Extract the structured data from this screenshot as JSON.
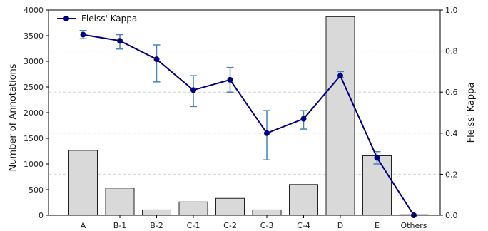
{
  "chart_data": {
    "type": "bar+line",
    "categories": [
      "A",
      "B-1",
      "B-2",
      "C-1",
      "C-2",
      "C-3",
      "C-4",
      "D",
      "E",
      "Others"
    ],
    "bars": {
      "name": "Number of Annotations",
      "values": [
        1265,
        530,
        105,
        260,
        330,
        105,
        600,
        3870,
        1160,
        10
      ],
      "color": "#d9d9d9"
    },
    "line": {
      "name": "Fleiss' Kappa",
      "values": [
        0.88,
        0.85,
        0.76,
        0.61,
        0.66,
        0.4,
        0.47,
        0.68,
        0.28,
        0.0
      ],
      "error": [
        [
          0.86,
          0.9
        ],
        [
          0.81,
          0.88
        ],
        [
          0.65,
          0.83
        ],
        [
          0.53,
          0.68
        ],
        [
          0.6,
          0.72
        ],
        [
          0.27,
          0.51
        ],
        [
          0.42,
          0.51
        ],
        [
          0.67,
          0.7
        ],
        [
          0.25,
          0.31
        ],
        null
      ],
      "color": "#000080",
      "error_color": "#4682b4"
    },
    "ylabel_left": "Number of Annotations",
    "ylabel_right": "Fleiss' Kappa",
    "ylim_left": [
      0,
      4000
    ],
    "ylim_right": [
      0.0,
      1.0
    ],
    "yticks_left": [
      "0",
      "500",
      "1000",
      "1500",
      "2000",
      "2500",
      "3000",
      "3500",
      "4000"
    ],
    "yticks_right": [
      "0.0",
      "0.2",
      "0.4",
      "0.6",
      "0.8",
      "1.0"
    ],
    "grid": "dashed horizontal",
    "legend_position": "top-left"
  }
}
